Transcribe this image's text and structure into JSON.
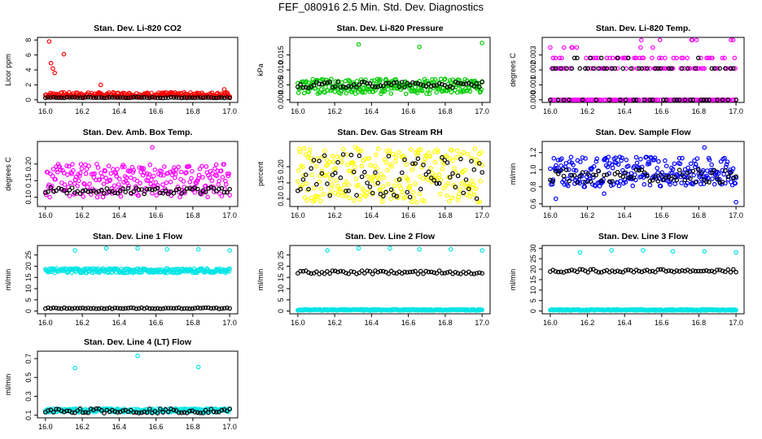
{
  "title": "FEF_080916  2.5 Min. Std. Dev. Diagnostics",
  "chart_data": [
    {
      "type": "scatter",
      "title": "Stan. Dev. Li-820 CO2",
      "ylabel": "Licor ppm",
      "xlim": [
        16.0,
        17.0
      ],
      "ylim": [
        0,
        8
      ],
      "xticks": [
        "16.0",
        "16.2",
        "16.4",
        "16.6",
        "16.8",
        "17.0"
      ],
      "yticks": [
        "0",
        "2",
        "4",
        "6",
        "8"
      ],
      "series": [
        {
          "color": "#ff0000",
          "band": [
            0.3,
            1.0
          ],
          "outliers": [
            [
              16.02,
              7.8
            ],
            [
              16.03,
              4.9
            ],
            [
              16.04,
              4.2
            ],
            [
              16.05,
              3.6
            ],
            [
              16.1,
              6.1
            ],
            [
              16.3,
              2.0
            ],
            [
              16.97,
              1.4
            ]
          ]
        },
        {
          "color": "#000000",
          "band": [
            0.25,
            0.35
          ],
          "outliers": []
        }
      ]
    },
    {
      "type": "scatter",
      "title": "Stan. Dev. Li-820 Pressure",
      "ylabel": "kPa",
      "xlim": [
        16.0,
        17.0
      ],
      "ylim": [
        0,
        0.02
      ],
      "xticks": [
        "16.0",
        "16.2",
        "16.4",
        "16.6",
        "16.8",
        "17.0"
      ],
      "yticks": [
        "0.000",
        "0.005",
        "0.010",
        "0.015"
      ],
      "series": [
        {
          "color": "#00cc00",
          "band": [
            0.002,
            0.007
          ],
          "outliers": [
            [
              16.33,
              0.0185
            ],
            [
              16.66,
              0.0177
            ],
            [
              17.0,
              0.019
            ]
          ]
        },
        {
          "color": "#000000",
          "band": [
            0.004,
            0.006
          ],
          "outliers": []
        }
      ]
    },
    {
      "type": "scatter",
      "title": "Stan. Dev. Li-820 Temp.",
      "ylabel": "degrees C",
      "xlim": [
        16.0,
        17.0
      ],
      "ylim": [
        0,
        0.004
      ],
      "xticks": [
        "16.0",
        "16.2",
        "16.4",
        "16.6",
        "16.8",
        "17.0"
      ],
      "yticks": [
        "0.000",
        "0.001",
        "0.002",
        "0.003"
      ],
      "series": [
        {
          "color": "#ff00ff",
          "levels": [
            0,
            0.0021,
            0.0028,
            0.0035,
            0.004
          ],
          "outliers": []
        },
        {
          "color": "#000000",
          "levels": [
            0,
            0.0021,
            0.0028
          ],
          "outliers": []
        }
      ]
    },
    {
      "type": "scatter",
      "title": "Stan. Dev. Amb. Box Temp.",
      "ylabel": "degrees C",
      "xlim": [
        16.0,
        17.0
      ],
      "ylim": [
        0.08,
        0.26
      ],
      "xticks": [
        "16.0",
        "16.2",
        "16.4",
        "16.6",
        "16.8",
        "17.0"
      ],
      "yticks": [
        "0.10",
        "0.15",
        "0.20"
      ],
      "series": [
        {
          "color": "#ff00ff",
          "band": [
            0.1,
            0.2
          ],
          "outliers": [
            [
              16.58,
              0.25
            ]
          ]
        },
        {
          "color": "#000000",
          "band": [
            0.11,
            0.13
          ],
          "outliers": []
        }
      ]
    },
    {
      "type": "scatter",
      "title": "Stan. Dev. Gas Stream RH",
      "ylabel": "percent",
      "xlim": [
        16.0,
        17.0
      ],
      "ylim": [
        0.085,
        0.27
      ],
      "xticks": [
        "16.0",
        "16.2",
        "16.4",
        "16.6",
        "16.8",
        "17.0"
      ],
      "yticks": [
        "0.10",
        "0.15",
        "0.20"
      ],
      "series": [
        {
          "color": "#ffff00",
          "band": [
            0.09,
            0.26
          ],
          "outliers": []
        },
        {
          "color": "#000000",
          "band": [
            0.1,
            0.24
          ],
          "outliers": []
        }
      ]
    },
    {
      "type": "scatter",
      "title": "Stan. Dev. Sample Flow",
      "ylabel": "ml/min",
      "xlim": [
        16.0,
        17.0
      ],
      "ylim": [
        0.6,
        1.3
      ],
      "xticks": [
        "16.0",
        "16.2",
        "16.4",
        "16.6",
        "16.8",
        "17.0"
      ],
      "yticks": [
        "0.6",
        "0.8",
        "1.0",
        "1.2"
      ],
      "series": [
        {
          "color": "#0000ff",
          "band": [
            0.8,
            1.15
          ],
          "outliers": [
            [
              16.03,
              0.66
            ],
            [
              16.29,
              0.72
            ],
            [
              16.83,
              1.26
            ],
            [
              17.0,
              0.62
            ]
          ]
        },
        {
          "color": "#000000",
          "band": [
            0.85,
            1.0
          ],
          "outliers": []
        }
      ]
    },
    {
      "type": "scatter",
      "title": "Stan. Dev. Line 1 Flow",
      "ylabel": "ml/min",
      "xlim": [
        16.0,
        17.0
      ],
      "ylim": [
        0,
        28
      ],
      "xticks": [
        "16.0",
        "16.2",
        "16.4",
        "16.6",
        "16.8",
        "17.0"
      ],
      "yticks": [
        "0",
        "5",
        "10",
        "15",
        "20",
        "25"
      ],
      "series": [
        {
          "color": "#00e5e5",
          "band": [
            17,
            19
          ],
          "outliers": [
            [
              16.16,
              27
            ],
            [
              16.33,
              28
            ],
            [
              16.5,
              28
            ],
            [
              16.66,
              27.5
            ],
            [
              16.83,
              27.5
            ],
            [
              17.0,
              27
            ]
          ]
        },
        {
          "color": "#000000",
          "band": [
            1,
            1.5
          ],
          "outliers": []
        }
      ]
    },
    {
      "type": "scatter",
      "title": "Stan. Dev. Line 2 Flow",
      "ylabel": "ml/min",
      "xlim": [
        16.0,
        17.0
      ],
      "ylim": [
        0,
        28
      ],
      "xticks": [
        "16.0",
        "16.2",
        "16.4",
        "16.6",
        "16.8",
        "17.0"
      ],
      "yticks": [
        "0",
        "5",
        "10",
        "15",
        "20",
        "25"
      ],
      "series": [
        {
          "color": "#00e5e5",
          "band": [
            0.3,
            0.8
          ],
          "outliers": [
            [
              16.16,
              27
            ],
            [
              16.33,
              28
            ],
            [
              16.5,
              28
            ],
            [
              16.66,
              27.5
            ],
            [
              16.83,
              27.5
            ],
            [
              17.0,
              27
            ]
          ]
        },
        {
          "color": "#000000",
          "band": [
            16.5,
            18
          ],
          "outliers": []
        }
      ]
    },
    {
      "type": "scatter",
      "title": "Stan. Dev. Line 3 Flow",
      "ylabel": "ml/min",
      "xlim": [
        16.0,
        17.0
      ],
      "ylim": [
        0,
        30
      ],
      "xticks": [
        "16.0",
        "16.2",
        "16.4",
        "16.6",
        "16.8",
        "17.0"
      ],
      "yticks": [
        "0",
        "5",
        "10",
        "15",
        "20",
        "25",
        "30"
      ],
      "series": [
        {
          "color": "#00e5e5",
          "band": [
            0.3,
            0.8
          ],
          "outliers": [
            [
              16.16,
              28
            ],
            [
              16.33,
              29
            ],
            [
              16.5,
              29
            ],
            [
              16.66,
              28.5
            ],
            [
              16.83,
              28.5
            ],
            [
              17.0,
              28
            ]
          ]
        },
        {
          "color": "#000000",
          "band": [
            18.5,
            20
          ],
          "outliers": []
        }
      ]
    },
    {
      "type": "scatter",
      "title": "Stan. Dev. Line 4 (LT) Flow",
      "ylabel": "ml/min",
      "xlim": [
        16.0,
        17.0
      ],
      "ylim": [
        0.1,
        0.75
      ],
      "xticks": [
        "16.0",
        "16.2",
        "16.4",
        "16.6",
        "16.8",
        "17.0"
      ],
      "yticks": [
        "0.1",
        "0.3",
        "0.5",
        "0.7"
      ],
      "series": [
        {
          "color": "#00e5e5",
          "band": [
            0.13,
            0.17
          ],
          "outliers": [
            [
              16.16,
              0.6
            ],
            [
              16.5,
              0.73
            ],
            [
              16.83,
              0.61
            ]
          ]
        },
        {
          "color": "#000000",
          "band": [
            0.12,
            0.17
          ],
          "outliers": []
        }
      ]
    }
  ]
}
